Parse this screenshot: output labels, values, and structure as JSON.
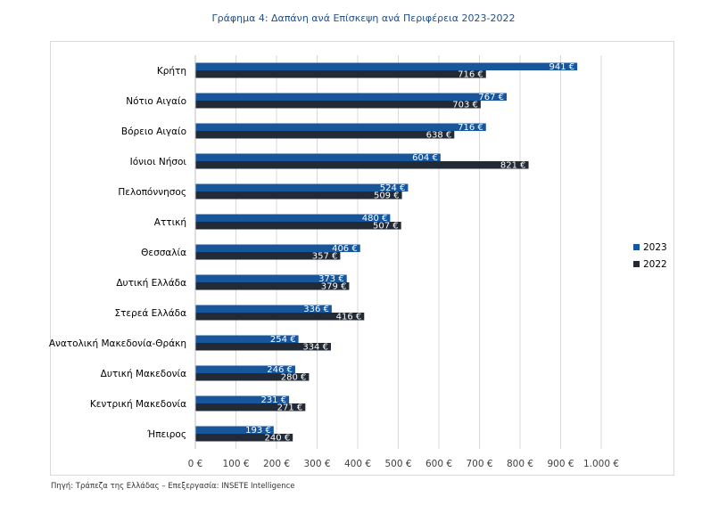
{
  "title": "Γράφημα 4: Δαπάνη ανά Επίσκεψη ανά Περιφέρεια 2023-2022",
  "source": "Πηγή: Τράπεζα της Ελλάδας – Επεξεργασία: INSETE Intelligence",
  "colors": {
    "s2023": "#17569b",
    "s2022": "#222a35",
    "grid": "#d9d9d9",
    "text": "#404040"
  },
  "chart_data": {
    "type": "bar",
    "orientation": "horizontal",
    "title": "Γράφημα 4: Δαπάνη ανά Επίσκεψη ανά Περιφέρεια 2023-2022",
    "categories": [
      "Κρήτη",
      "Νότιο Αιγαίο",
      "Βόρειο Αιγαίο",
      "Ιόνιοι Νήσοι",
      "Πελοπόννησος",
      "Αττική",
      "Θεσσαλία",
      "Δυτική Ελλάδα",
      "Στερεά Ελλάδα",
      "Ανατολική Μακεδονία-Θράκη",
      "Δυτική Μακεδονία",
      "Κεντρική Μακεδονία",
      "Ήπειρος"
    ],
    "series": [
      {
        "name": "2023",
        "values": [
          941,
          767,
          716,
          604,
          524,
          480,
          406,
          373,
          336,
          254,
          246,
          231,
          193
        ],
        "labels": [
          "941 €",
          "767 €",
          "716 €",
          "604 €",
          "524 €",
          "480 €",
          "406 €",
          "373 €",
          "336 €",
          "254 €",
          "246 €",
          "231 €",
          "193 €"
        ]
      },
      {
        "name": "2022",
        "values": [
          716,
          703,
          638,
          821,
          509,
          507,
          357,
          379,
          416,
          334,
          280,
          271,
          240
        ],
        "labels": [
          "716 €",
          "703 €",
          "638 €",
          "821 €",
          "509 €",
          "507 €",
          "357 €",
          "379 €",
          "416 €",
          "334 €",
          "280 €",
          "271 €",
          "240 €"
        ]
      }
    ],
    "xlim": [
      0,
      1000
    ],
    "xticks": [
      0,
      100,
      200,
      300,
      400,
      500,
      600,
      700,
      800,
      900,
      1000
    ],
    "xtick_labels": [
      "0 €",
      "100 €",
      "200 €",
      "300 €",
      "400 €",
      "500 €",
      "600 €",
      "700 €",
      "800 €",
      "900 €",
      "1.000 €"
    ],
    "grid": true,
    "legend": "right"
  }
}
